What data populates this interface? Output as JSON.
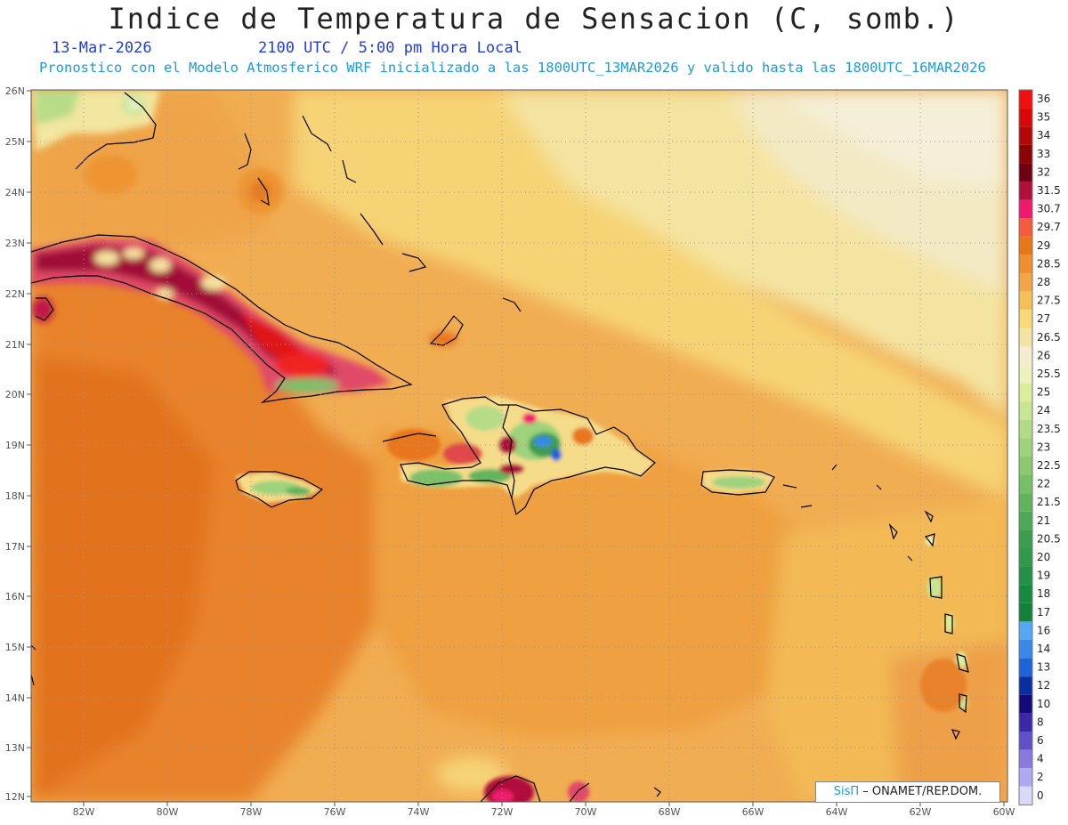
{
  "header": {
    "title": "Indice de Temperatura de Sensacion (C, somb.)",
    "date": "13-Mar-2026",
    "time": "2100 UTC / 5:00 pm Hora Local",
    "subtitle": "Pronostico con el Modelo Atmosferico WRF inicializado a las 1800UTC_13MAR2026 y valido hasta las  1800UTC_16MAR2026"
  },
  "axes": {
    "lat_labels": [
      "26N",
      "25N",
      "24N",
      "23N",
      "22N",
      "21N",
      "20N",
      "19N",
      "18N",
      "17N",
      "16N",
      "15N",
      "14N",
      "13N",
      "12N"
    ],
    "lon_labels": [
      "82W",
      "80W",
      "78W",
      "76W",
      "74W",
      "72W",
      "70W",
      "68W",
      "66W",
      "64W",
      "62W",
      "60W"
    ],
    "lat_range": [
      12,
      26
    ],
    "lon_range": [
      -83.2,
      -60
    ]
  },
  "legend": {
    "levels": [
      {
        "label": "36",
        "color": "#f01010"
      },
      {
        "label": "35",
        "color": "#d80808"
      },
      {
        "label": "34",
        "color": "#b40606"
      },
      {
        "label": "33",
        "color": "#8a0404"
      },
      {
        "label": "32",
        "color": "#6e0012"
      },
      {
        "label": "31.5",
        "color": "#b0103c"
      },
      {
        "label": "30.7",
        "color": "#ef1a6c"
      },
      {
        "label": "29.7",
        "color": "#f45a3c"
      },
      {
        "label": "29",
        "color": "#e8761a"
      },
      {
        "label": "28.5",
        "color": "#ee9030"
      },
      {
        "label": "28",
        "color": "#f1a548"
      },
      {
        "label": "27.5",
        "color": "#f4c05a"
      },
      {
        "label": "27",
        "color": "#f7d978"
      },
      {
        "label": "26.5",
        "color": "#f3e4a5"
      },
      {
        "label": "26",
        "color": "#f4edd0"
      },
      {
        "label": "25.5",
        "color": "#eef2c0"
      },
      {
        "label": "25",
        "color": "#d9ef9c"
      },
      {
        "label": "24",
        "color": "#c6e694"
      },
      {
        "label": "23.5",
        "color": "#b2db88"
      },
      {
        "label": "23",
        "color": "#9ed27c"
      },
      {
        "label": "22.5",
        "color": "#8ac970"
      },
      {
        "label": "22",
        "color": "#76bf66"
      },
      {
        "label": "21.5",
        "color": "#62b45c"
      },
      {
        "label": "21",
        "color": "#4fa856"
      },
      {
        "label": "20.5",
        "color": "#3c9c50"
      },
      {
        "label": "20",
        "color": "#2f9a4c"
      },
      {
        "label": "19",
        "color": "#239048"
      },
      {
        "label": "18",
        "color": "#188a40"
      },
      {
        "label": "17",
        "color": "#12803a"
      },
      {
        "label": "16",
        "color": "#55a8f0"
      },
      {
        "label": "14",
        "color": "#3888e8"
      },
      {
        "label": "13",
        "color": "#1e64d6"
      },
      {
        "label": "12",
        "color": "#0a2e9e"
      },
      {
        "label": "10",
        "color": "#140a78"
      },
      {
        "label": "8",
        "color": "#3a28a8"
      },
      {
        "label": "6",
        "color": "#6050c8"
      },
      {
        "label": "4",
        "color": "#8a7ae0"
      },
      {
        "label": "2",
        "color": "#b2a8f2"
      },
      {
        "label": "0",
        "color": "#dcd8fa"
      }
    ]
  },
  "credit": {
    "sis": "SisΠ",
    "text": " – ONAMET/REP.DOM."
  }
}
